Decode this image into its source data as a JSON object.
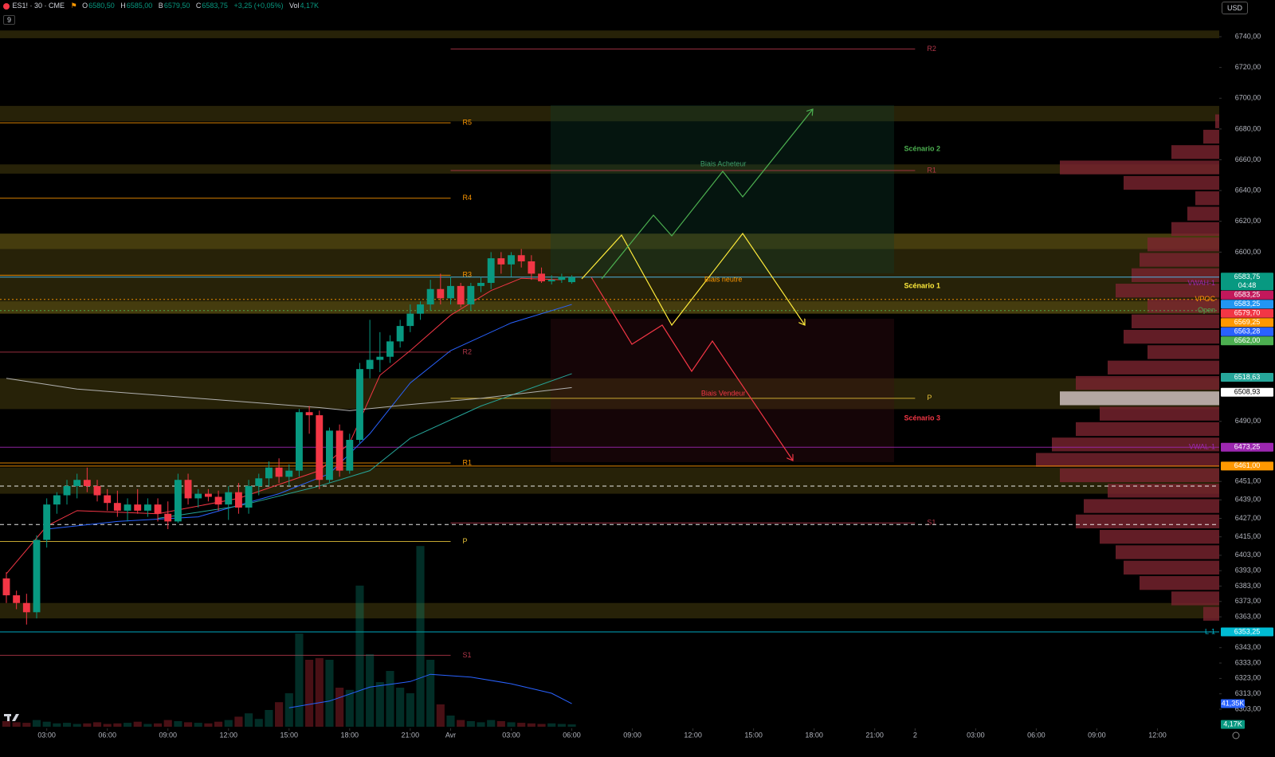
{
  "header": {
    "symbol": "ES1! · 30 · CME",
    "o_label": "O",
    "o": "6580,50",
    "h_label": "H",
    "h": "6585,00",
    "l_label": "B",
    "l": "6579,50",
    "c_label": "C",
    "c": "6583,75",
    "change": "+3,25 (+0,05%)",
    "vol_label": "Vol",
    "vol": "4,17K",
    "interval_badge": "9",
    "currency": "USD"
  },
  "chart_data": {
    "type": "candlestick",
    "up_color": "#089981",
    "down_color": "#f23645",
    "x": [
      0,
      1,
      2,
      3,
      4,
      5,
      6,
      7,
      8,
      9,
      10,
      11,
      12,
      13,
      14,
      15,
      16,
      17,
      18,
      19,
      20,
      21,
      22,
      23,
      24,
      25,
      26,
      27,
      28,
      29,
      30,
      31,
      32,
      33,
      34,
      35,
      36,
      37,
      38,
      39,
      40,
      41,
      42,
      43,
      44,
      45,
      46,
      47,
      48,
      49,
      50,
      51,
      52,
      53,
      54,
      55,
      56
    ],
    "open": [
      6388,
      6377,
      6372,
      6366,
      6413,
      6436,
      6442,
      6448,
      6452,
      6448,
      6442,
      6437,
      6432,
      6436,
      6432,
      6436,
      6430,
      6425,
      6452,
      6440,
      6443,
      6441,
      6436,
      6444,
      6434,
      6448,
      6453,
      6460,
      6454,
      6458,
      6496,
      6494,
      6452,
      6484,
      6458,
      6478,
      6524,
      6530,
      6532,
      6542,
      6552,
      6560,
      6566,
      6576,
      6570,
      6578,
      6566,
      6578,
      6580,
      6596,
      6592,
      6598,
      6594,
      6586,
      6581,
      6582,
      6580.5
    ],
    "high": [
      6392,
      6380,
      6378,
      6416,
      6440,
      6444,
      6452,
      6456,
      6460,
      6452,
      6446,
      6445,
      6440,
      6446,
      6440,
      6440,
      6438,
      6456,
      6456,
      6446,
      6446,
      6445,
      6448,
      6450,
      6452,
      6456,
      6464,
      6466,
      6462,
      6498,
      6500,
      6497,
      6486,
      6488,
      6482,
      6528,
      6556,
      6548,
      6546,
      6556,
      6566,
      6568,
      6582,
      6586,
      6584,
      6580,
      6580,
      6584,
      6600,
      6600,
      6600,
      6602,
      6598,
      6590,
      6585,
      6586,
      6585
    ],
    "low": [
      6372,
      6368,
      6358,
      6362,
      6408,
      6430,
      6436,
      6440,
      6444,
      6438,
      6432,
      6428,
      6425,
      6430,
      6428,
      6425,
      6420,
      6424,
      6436,
      6434,
      6438,
      6432,
      6426,
      6430,
      6430,
      6442,
      6448,
      6450,
      6448,
      6454,
      6482,
      6446,
      6450,
      6454,
      6456,
      6476,
      6518,
      6522,
      6528,
      6538,
      6548,
      6556,
      6562,
      6566,
      6566,
      6564,
      6562,
      6574,
      6576,
      6586,
      6584,
      6590,
      6582,
      6580,
      6579,
      6580,
      6579.5
    ],
    "close": [
      6377,
      6372,
      6366,
      6413,
      6436,
      6442,
      6448,
      6452,
      6448,
      6442,
      6437,
      6432,
      6436,
      6432,
      6436,
      6430,
      6425,
      6452,
      6440,
      6443,
      6441,
      6436,
      6444,
      6434,
      6448,
      6453,
      6460,
      6454,
      6458,
      6496,
      6494,
      6452,
      6484,
      6458,
      6478,
      6524,
      6530,
      6532,
      6542,
      6552,
      6560,
      6566,
      6576,
      6570,
      6578,
      6566,
      6578,
      6580,
      6596,
      6592,
      6598,
      6594,
      6586,
      6581,
      6582,
      6584,
      6583.75
    ],
    "volume": [
      10,
      8,
      7,
      12,
      9,
      6,
      7,
      5,
      6,
      8,
      5,
      6,
      7,
      9,
      5,
      6,
      12,
      10,
      8,
      7,
      6,
      9,
      12,
      18,
      24,
      14,
      30,
      44,
      60,
      167,
      120,
      123,
      120,
      70,
      66,
      253,
      130,
      80,
      100,
      70,
      60,
      324,
      120,
      40,
      20,
      12,
      10,
      8,
      12,
      10,
      8,
      7,
      6,
      5,
      6,
      5,
      4.17
    ],
    "volume_ma": {
      "color": "#2962ff",
      "x": [
        28,
        32,
        36,
        40,
        42,
        46,
        50,
        54,
        56
      ],
      "values": [
        34,
        46,
        71,
        81,
        94,
        89,
        77,
        60,
        41.35
      ]
    },
    "volume_tags": [
      {
        "value": 41.35,
        "label": "41,35K",
        "color": "#2962ff"
      },
      {
        "value": 4.17,
        "label": "4,17K",
        "color": "#089981"
      }
    ],
    "indicators": [
      {
        "color": "#f23645",
        "x": [
          0,
          4,
          7,
          15,
          23,
          31,
          34,
          37,
          40,
          44,
          48,
          51,
          55
        ],
        "values": [
          6391,
          6422,
          6432,
          6430,
          6440,
          6458,
          6476,
          6520,
          6536,
          6559,
          6575,
          6583,
          6582
        ]
      },
      {
        "color": "#2962ff",
        "x": [
          4,
          11,
          19,
          27,
          32,
          36,
          40,
          44,
          50,
          56
        ],
        "values": [
          6420,
          6425,
          6428,
          6443,
          6456,
          6482,
          6515,
          6536,
          6554,
          6566
        ]
      },
      {
        "color": "#26a69a",
        "x": [
          15,
          23,
          31,
          36,
          40,
          47,
          56
        ],
        "values": [
          6427,
          6435,
          6448,
          6458,
          6479,
          6500,
          6521
        ]
      },
      {
        "color": "#b0b0b0",
        "x": [
          0,
          7,
          19,
          31,
          34,
          40,
          47,
          56
        ],
        "values": [
          6518,
          6511,
          6505,
          6499,
          6497,
          6501,
          6505,
          6512
        ]
      }
    ],
    "zones": [
      [
        6739,
        6744
      ],
      [
        6685,
        6695
      ],
      [
        6651,
        6657
      ],
      [
        6560,
        6612
      ],
      [
        6602,
        6612
      ],
      [
        6560,
        6568
      ],
      [
        6498,
        6518
      ],
      [
        6443,
        6460
      ],
      [
        6362,
        6372
      ]
    ],
    "zone_color": "#b39d24",
    "levels": [
      {
        "label": "R5",
        "value": 6684,
        "color": "#ff9800",
        "x": [
          -0.63,
          44
        ]
      },
      {
        "label": "R4",
        "value": 6635,
        "color": "#ff9800",
        "x": [
          -0.63,
          44
        ]
      },
      {
        "label": "R3",
        "value": 6585,
        "color": "#ff9800",
        "x": [
          -0.63,
          44
        ]
      },
      {
        "label": "R2",
        "value": 6535,
        "color": "#b2374a",
        "x": [
          -0.63,
          44
        ]
      },
      {
        "label": "R1",
        "value": 6463,
        "color": "#ff9800",
        "x": [
          -0.63,
          44
        ]
      },
      {
        "label": "P",
        "value": 6412,
        "color": "#e8c33a",
        "x": [
          -0.63,
          44
        ]
      },
      {
        "label": "S1",
        "value": 6338,
        "color": "#b2374a",
        "x": [
          -0.63,
          44
        ]
      },
      {
        "label": "R2",
        "value": 6732,
        "color": "#b2374a",
        "x": [
          44,
          90
        ]
      },
      {
        "label": "R1",
        "value": 6653,
        "color": "#b2374a",
        "x": [
          44,
          90
        ]
      },
      {
        "label": "P",
        "value": 6505,
        "color": "#e8c33a",
        "x": [
          44,
          90
        ]
      },
      {
        "label": "S1",
        "value": 6424,
        "color": "#b2374a",
        "x": [
          44,
          90
        ]
      }
    ],
    "hlines": [
      {
        "value": 6583.75,
        "color": "#4fc3f7",
        "style": "solid"
      },
      {
        "value": 6569.25,
        "color": "#ff9800",
        "style": "dotted"
      },
      {
        "value": 6562,
        "color": "#4caf50",
        "style": "dotted"
      },
      {
        "value": 6473.25,
        "color": "#9c27b0",
        "style": "solid"
      },
      {
        "value": 6461,
        "color": "#ff9800",
        "style": "solid"
      },
      {
        "value": 6353.25,
        "color": "#00bcd4",
        "style": "solid"
      },
      {
        "value": 6448,
        "color": "#ffffff",
        "style": "dashed"
      },
      {
        "value": 6423,
        "color": "#ffffff",
        "style": "dashed"
      }
    ],
    "side_labels": [
      {
        "text": "VWAH-1",
        "value": 6583.25,
        "color": "#9c27b0"
      },
      {
        "text": "VPOC",
        "value": 6569.25,
        "color": "#ff9800"
      },
      {
        "text": "Open",
        "value": 6562,
        "color": "#4caf50"
      },
      {
        "text": "VWAL-1",
        "value": 6473.25,
        "color": "#9c27b0"
      },
      {
        "text": "L-1",
        "value": 6353.25,
        "color": "#00bcd4"
      }
    ],
    "price_tags": [
      {
        "value": 6583.75,
        "label": "6583,75",
        "sub": "04:48",
        "color": "#089981"
      },
      {
        "value": 6583.25,
        "label": "6583,25",
        "color": "#c2185b"
      },
      {
        "value": 6583.25,
        "label": "6583,25",
        "color": "#2196f3"
      },
      {
        "value": 6579.7,
        "label": "6579,70",
        "color": "#f23645"
      },
      {
        "value": 6569.25,
        "label": "6569,25",
        "color": "#ff9800"
      },
      {
        "value": 6563.28,
        "label": "6563,28",
        "color": "#2962ff"
      },
      {
        "value": 6562,
        "label": "6562,00",
        "color": "#4caf50"
      },
      {
        "value": 6518.63,
        "label": "6518,63",
        "color": "#26a69a"
      },
      {
        "value": 6508.93,
        "label": "6508,93",
        "color": "#ffffff"
      },
      {
        "value": 6473.25,
        "label": "6473,25",
        "color": "#9c27b0"
      },
      {
        "value": 6461,
        "label": "6461,00",
        "color": "#ff9800"
      },
      {
        "value": 6353.25,
        "label": "6353,25",
        "color": "#00bcd4"
      }
    ],
    "volume_profile": {
      "color": "#7a2430",
      "poc_color": "#d8c9c9",
      "poc_price": 6505,
      "prices": [
        6685,
        6675,
        6665,
        6655,
        6645,
        6635,
        6625,
        6615,
        6605,
        6595,
        6585,
        6575,
        6565,
        6555,
        6545,
        6535,
        6525,
        6515,
        6505,
        6495,
        6485,
        6475,
        6465,
        6455,
        6445,
        6435,
        6425,
        6415,
        6405,
        6395,
        6385,
        6375,
        6365
      ],
      "widths": [
        5,
        20,
        60,
        200,
        120,
        30,
        40,
        60,
        90,
        100,
        110,
        130,
        90,
        110,
        120,
        90,
        140,
        180,
        200,
        150,
        180,
        210,
        230,
        200,
        140,
        170,
        180,
        150,
        130,
        120,
        100,
        60,
        20
      ]
    },
    "annotations": [
      {
        "text": "Biais Acheteur",
        "x": 71,
        "value": 6657,
        "color": "#3f9f6b"
      },
      {
        "text": "Biais neutre",
        "x": 71,
        "value": 6582,
        "color": "#ff9800"
      },
      {
        "text": "Biais Vendeur",
        "x": 71,
        "value": 6508,
        "color": "#f23645"
      },
      {
        "text": "Scénario 2",
        "x": 90.7,
        "value": 6667,
        "color": "#4caf50"
      },
      {
        "text": "Scénario 1",
        "x": 90.7,
        "value": 6578,
        "color": "#ffeb3b"
      },
      {
        "text": "Scénario 3",
        "x": 90.7,
        "value": 6492,
        "color": "#f23645"
      }
    ],
    "xlim": [
      -0.63,
      120.12
    ],
    "xticks": [
      {
        "value": 4,
        "label": "03:00"
      },
      {
        "value": 10,
        "label": "06:00"
      },
      {
        "value": 16,
        "label": "09:00"
      },
      {
        "value": 22,
        "label": "12:00"
      },
      {
        "value": 28,
        "label": "15:00"
      },
      {
        "value": 34,
        "label": "18:00"
      },
      {
        "value": 40,
        "label": "21:00"
      },
      {
        "value": 44,
        "label": "Avr"
      },
      {
        "value": 50,
        "label": "03:00"
      },
      {
        "value": 56,
        "label": "06:00"
      },
      {
        "value": 62,
        "label": "09:00"
      },
      {
        "value": 68,
        "label": "12:00"
      },
      {
        "value": 74,
        "label": "15:00"
      },
      {
        "value": 80,
        "label": "18:00"
      },
      {
        "value": 86,
        "label": "21:00"
      },
      {
        "value": 90,
        "label": "2"
      },
      {
        "value": 96,
        "label": "03:00"
      },
      {
        "value": 102,
        "label": "06:00"
      },
      {
        "value": 108,
        "label": "09:00"
      },
      {
        "value": 114,
        "label": "12:00"
      }
    ],
    "ylim": [
      6303,
      6740
    ],
    "yticks": [
      {
        "value": 6740,
        "label": "6740,00"
      },
      {
        "value": 6720,
        "label": "6720,00"
      },
      {
        "value": 6700,
        "label": "6700,00"
      },
      {
        "value": 6680,
        "label": "6680,00"
      },
      {
        "value": 6660,
        "label": "6660,00"
      },
      {
        "value": 6640,
        "label": "6640,00"
      },
      {
        "value": 6620,
        "label": "6620,00"
      },
      {
        "value": 6600,
        "label": "6600,00"
      },
      {
        "value": 6490,
        "label": "6490,00"
      },
      {
        "value": 6451,
        "label": "6451,00"
      },
      {
        "value": 6439,
        "label": "6439,00"
      },
      {
        "value": 6427,
        "label": "6427,00"
      },
      {
        "value": 6415,
        "label": "6415,00"
      },
      {
        "value": 6403,
        "label": "6403,00"
      },
      {
        "value": 6393,
        "label": "6393,00"
      },
      {
        "value": 6383,
        "label": "6383,00"
      },
      {
        "value": 6373,
        "label": "6373,00"
      },
      {
        "value": 6363,
        "label": "6363,00"
      },
      {
        "value": 6343,
        "label": "6343,00"
      },
      {
        "value": 6333,
        "label": "6333,00"
      },
      {
        "value": 6323,
        "label": "6323,00"
      },
      {
        "value": 6313,
        "label": "6313,00"
      },
      {
        "value": 6303,
        "label": "6303,00"
      }
    ]
  }
}
